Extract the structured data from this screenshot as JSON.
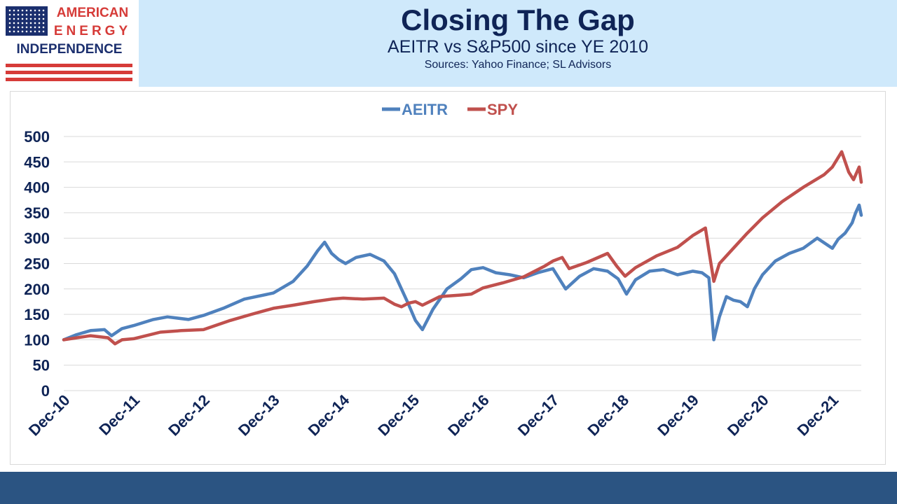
{
  "header": {
    "logo": {
      "line1": "AMERICAN",
      "line2": "ENERGY",
      "line3": "INDEPENDENCE"
    },
    "title": "Closing The Gap",
    "subtitle": "AEITR vs S&P500 since YE 2010",
    "sources": "Sources: Yahoo Finance; SL Advisors"
  },
  "colors": {
    "header_bg": "#cfe9fb",
    "title_text": "#0f2456",
    "logo_red": "#d63b38",
    "logo_navy": "#1b2f6e",
    "footer_bar": "#2b5482",
    "aeitr": "#4f81bd",
    "spy": "#c0504d",
    "axis_text": "#0f2456",
    "gridline": "#d9d9d9"
  },
  "chart_data": {
    "type": "line",
    "title": "",
    "xlabel": "",
    "ylabel": "",
    "ylim": [
      0,
      500
    ],
    "yticks": [
      0,
      50,
      100,
      150,
      200,
      250,
      300,
      350,
      400,
      450,
      500
    ],
    "xlim": [
      2010.917,
      2022.33
    ],
    "x_tick_labels": [
      "Dec-10",
      "Dec-11",
      "Dec-12",
      "Dec-13",
      "Dec-14",
      "Dec-15",
      "Dec-16",
      "Dec-17",
      "Dec-18",
      "Dec-19",
      "Dec-20",
      "Dec-21"
    ],
    "x_tick_positions": [
      2010.917,
      2011.917,
      2012.917,
      2013.917,
      2014.917,
      2015.917,
      2016.917,
      2017.917,
      2018.917,
      2019.917,
      2020.917,
      2021.917
    ],
    "grid": true,
    "legend_position": "top-center",
    "series": [
      {
        "name": "AEITR",
        "x": [
          2010.917,
          2011.1,
          2011.3,
          2011.5,
          2011.6,
          2011.75,
          2011.917,
          2012.2,
          2012.4,
          2012.7,
          2012.917,
          2013.2,
          2013.5,
          2013.917,
          2014.2,
          2014.4,
          2014.55,
          2014.65,
          2014.75,
          2014.85,
          2014.95,
          2015.1,
          2015.3,
          2015.5,
          2015.65,
          2015.75,
          2015.85,
          2015.95,
          2016.05,
          2016.2,
          2016.4,
          2016.6,
          2016.75,
          2016.917,
          2017.1,
          2017.3,
          2017.5,
          2017.7,
          2017.917,
          2018.1,
          2018.3,
          2018.5,
          2018.7,
          2018.85,
          2018.97,
          2019.1,
          2019.3,
          2019.5,
          2019.7,
          2019.917,
          2020.05,
          2020.15,
          2020.22,
          2020.3,
          2020.4,
          2020.5,
          2020.6,
          2020.7,
          2020.8,
          2020.917,
          2021.1,
          2021.3,
          2021.5,
          2021.7,
          2021.917,
          2022.0,
          2022.1,
          2022.2,
          2022.25,
          2022.3,
          2022.33
        ],
        "values": [
          100,
          110,
          118,
          120,
          108,
          122,
          128,
          140,
          145,
          140,
          148,
          162,
          180,
          192,
          215,
          245,
          275,
          292,
          270,
          258,
          250,
          262,
          268,
          255,
          230,
          200,
          170,
          138,
          120,
          160,
          200,
          220,
          238,
          242,
          232,
          228,
          222,
          232,
          240,
          200,
          225,
          240,
          235,
          220,
          190,
          218,
          235,
          238,
          228,
          235,
          232,
          222,
          100,
          145,
          185,
          178,
          175,
          165,
          200,
          228,
          255,
          270,
          280,
          300,
          280,
          298,
          310,
          330,
          350,
          365,
          345
        ]
      },
      {
        "name": "SPY",
        "x": [
          2010.917,
          2011.3,
          2011.55,
          2011.65,
          2011.75,
          2011.917,
          2012.3,
          2012.6,
          2012.917,
          2013.3,
          2013.6,
          2013.917,
          2014.2,
          2014.5,
          2014.75,
          2014.917,
          2015.2,
          2015.5,
          2015.65,
          2015.75,
          2015.85,
          2015.95,
          2016.05,
          2016.3,
          2016.6,
          2016.75,
          2016.917,
          2017.2,
          2017.5,
          2017.8,
          2017.917,
          2018.05,
          2018.15,
          2018.4,
          2018.7,
          2018.83,
          2018.95,
          2019.1,
          2019.4,
          2019.7,
          2019.917,
          2020.1,
          2020.15,
          2020.22,
          2020.3,
          2020.5,
          2020.7,
          2020.917,
          2021.2,
          2021.5,
          2021.8,
          2021.917,
          2022.05,
          2022.15,
          2022.22,
          2022.3,
          2022.33
        ],
        "values": [
          100,
          108,
          104,
          92,
          100,
          102,
          115,
          118,
          120,
          138,
          150,
          162,
          168,
          175,
          180,
          182,
          180,
          182,
          170,
          165,
          172,
          175,
          168,
          185,
          188,
          190,
          202,
          212,
          224,
          245,
          255,
          262,
          240,
          252,
          270,
          245,
          225,
          242,
          265,
          282,
          305,
          320,
          275,
          215,
          250,
          280,
          310,
          340,
          372,
          400,
          425,
          440,
          470,
          430,
          415,
          440,
          410
        ]
      }
    ]
  }
}
